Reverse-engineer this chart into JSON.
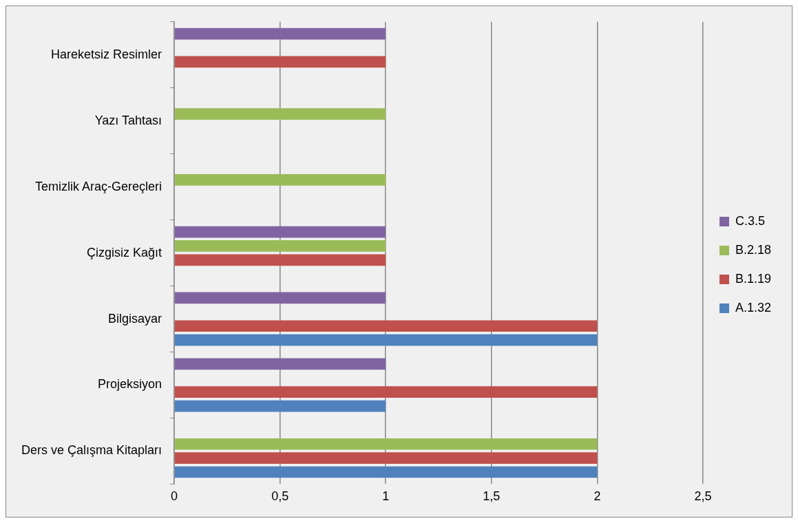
{
  "chart_data": {
    "type": "bar",
    "orientation": "horizontal",
    "categories": [
      "Hareketsiz Resimler",
      "Yazı Tahtası",
      "Temizlik Araç-Gereçleri",
      "Çizgisiz Kağıt",
      "Bilgisayar",
      "Projeksiyon",
      "Ders ve Çalışma Kitapları"
    ],
    "series": [
      {
        "name": "A.1.32",
        "color": "#4f81bd",
        "values": [
          null,
          null,
          null,
          null,
          2,
          1,
          2
        ]
      },
      {
        "name": "B.1.19",
        "color": "#c0504d",
        "values": [
          1,
          null,
          null,
          1,
          2,
          2,
          2
        ]
      },
      {
        "name": "B.2.18",
        "color": "#9bbb59",
        "values": [
          null,
          1,
          1,
          1,
          null,
          null,
          2
        ]
      },
      {
        "name": "C.3.5",
        "color": "#8064a2",
        "values": [
          1,
          null,
          null,
          1,
          1,
          1,
          null
        ]
      }
    ],
    "xlim": [
      0,
      2.5
    ],
    "xticks": [
      {
        "value": 0,
        "label": "0"
      },
      {
        "value": 0.5,
        "label": "0,5"
      },
      {
        "value": 1,
        "label": "1"
      },
      {
        "value": 1.5,
        "label": "1,5"
      },
      {
        "value": 2,
        "label": "2"
      },
      {
        "value": 2.5,
        "label": "2,5"
      }
    ],
    "grid": "x",
    "legend": "right"
  }
}
